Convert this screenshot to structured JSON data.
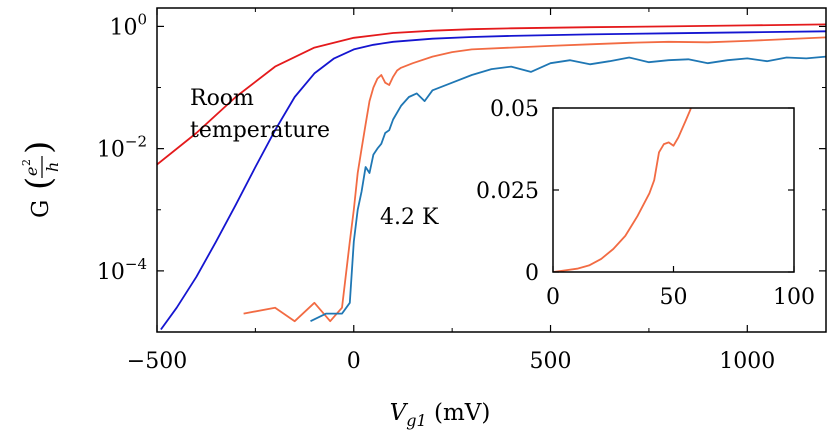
{
  "chart_data": [
    {
      "id": "main",
      "type": "line",
      "title": "",
      "xlabel": "V_g1 (mV)",
      "xlabel_parts": {
        "var": "V",
        "sub": "g1",
        "unit": " (mV)"
      },
      "ylabel": "G (e^2/h)",
      "ylabel_parts": {
        "letter": "G",
        "num_base": "e",
        "num_exp": "2",
        "den": "h"
      },
      "x_ticks": [
        -500,
        0,
        500,
        1000
      ],
      "x_tick_labels": [
        "−500",
        "0",
        "500",
        "1000"
      ],
      "y_scale": "log",
      "y_ticks": [
        1,
        0.01,
        0.0001
      ],
      "y_tick_labels": [
        {
          "base": "10",
          "exp": "0"
        },
        {
          "base": "10",
          "exp": "−2"
        },
        {
          "base": "10",
          "exp": "−4"
        }
      ],
      "xlim": [
        -500,
        1200
      ],
      "ylim": [
        1e-05,
        2
      ],
      "grid": false,
      "annotations": [
        "Room temperature",
        "4.2 K"
      ],
      "annotation_lines": [
        "Room",
        "temperature"
      ],
      "annotation_4k": "4.2 K",
      "series": [
        {
          "color": "#e41a1c",
          "x": [
            -500,
            -400,
            -300,
            -200,
            -100,
            0,
            100,
            200,
            300,
            400,
            600,
            800,
            1000,
            1200
          ],
          "y": [
            0.0055,
            0.018,
            0.07,
            0.22,
            0.45,
            0.65,
            0.78,
            0.85,
            0.9,
            0.93,
            0.97,
            1.0,
            1.04,
            1.08
          ]
        },
        {
          "color": "#1515d0",
          "x": [
            -490,
            -450,
            -400,
            -350,
            -300,
            -250,
            -200,
            -150,
            -100,
            -50,
            0,
            50,
            100,
            200,
            300,
            400,
            600,
            800,
            1000,
            1200
          ],
          "y": [
            1.1e-05,
            2.5e-05,
            8e-05,
            0.0003,
            0.0012,
            0.005,
            0.02,
            0.07,
            0.17,
            0.3,
            0.42,
            0.5,
            0.56,
            0.63,
            0.67,
            0.7,
            0.74,
            0.77,
            0.8,
            0.83
          ]
        },
        {
          "color": "#f26b43",
          "x": [
            -280,
            -200,
            -150,
            -100,
            -60,
            -30,
            -10,
            0,
            10,
            20,
            30,
            40,
            50,
            60,
            70,
            80,
            90,
            100,
            110,
            120,
            150,
            200,
            250,
            300,
            400,
            500,
            600,
            700,
            800,
            900,
            1000,
            1100,
            1200
          ],
          "y": [
            2e-05,
            2.5e-05,
            1.5e-05,
            3e-05,
            1.5e-05,
            2.5e-05,
            0.0003,
            0.001,
            0.004,
            0.01,
            0.025,
            0.06,
            0.1,
            0.14,
            0.16,
            0.12,
            0.11,
            0.15,
            0.19,
            0.21,
            0.25,
            0.32,
            0.38,
            0.42,
            0.45,
            0.48,
            0.51,
            0.54,
            0.56,
            0.55,
            0.58,
            0.62,
            0.66
          ]
        },
        {
          "color": "#1f77b4",
          "x": [
            -110,
            -70,
            -30,
            -10,
            0,
            10,
            20,
            30,
            40,
            50,
            60,
            70,
            80,
            90,
            100,
            120,
            140,
            160,
            180,
            200,
            250,
            300,
            350,
            400,
            450,
            500,
            550,
            600,
            650,
            700,
            750,
            800,
            850,
            900,
            950,
            1000,
            1050,
            1100,
            1150,
            1200
          ],
          "y": [
            1.5e-05,
            2e-05,
            2e-05,
            3e-05,
            0.0003,
            0.001,
            0.002,
            0.005,
            0.004,
            0.008,
            0.01,
            0.012,
            0.018,
            0.02,
            0.03,
            0.05,
            0.07,
            0.08,
            0.06,
            0.09,
            0.12,
            0.16,
            0.2,
            0.22,
            0.18,
            0.25,
            0.28,
            0.24,
            0.27,
            0.31,
            0.26,
            0.28,
            0.29,
            0.25,
            0.28,
            0.3,
            0.27,
            0.31,
            0.3,
            0.32
          ]
        }
      ]
    },
    {
      "id": "inset",
      "type": "line",
      "title": "",
      "xlabel": "",
      "ylabel": "",
      "xlim": [
        0,
        100
      ],
      "ylim": [
        0,
        0.05
      ],
      "x_ticks": [
        0,
        50,
        100
      ],
      "x_tick_labels": [
        "0",
        "50",
        "100"
      ],
      "y_ticks": [
        0,
        0.025,
        0.05
      ],
      "y_tick_labels": [
        "0",
        "0.025",
        "0.05"
      ],
      "grid": false,
      "series": [
        {
          "color": "#f26b43",
          "x": [
            0,
            5,
            10,
            15,
            20,
            25,
            30,
            35,
            40,
            42,
            44,
            46,
            48,
            50,
            52,
            55,
            57,
            58
          ],
          "y": [
            0,
            0.0005,
            0.001,
            0.002,
            0.004,
            0.007,
            0.011,
            0.017,
            0.024,
            0.028,
            0.0365,
            0.039,
            0.0395,
            0.0385,
            0.041,
            0.046,
            0.0495,
            0.052
          ]
        }
      ]
    }
  ]
}
